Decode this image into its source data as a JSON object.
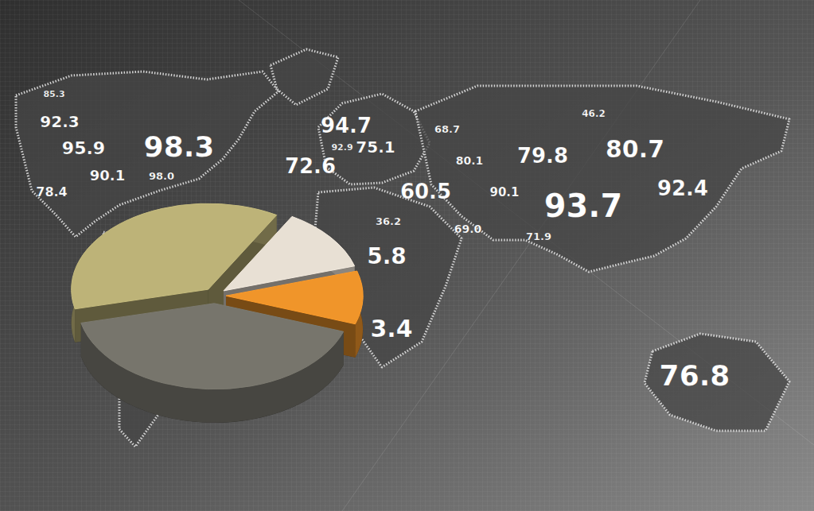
{
  "chart_data": {
    "type": "pie",
    "values": [
      12,
      10,
      41,
      37
    ],
    "colors": [
      "#e8e0d4",
      "#f0952a",
      "#77756c",
      "#bdb378"
    ],
    "annotations": [
      "85.3",
      "92.3",
      "95.9",
      "98.3",
      "90.1",
      "98.0",
      "78.4",
      "94.7",
      "68.7",
      "92.9",
      "75.1",
      "46.2",
      "79.8",
      "80.7",
      "72.6",
      "80.1",
      "60.5",
      "90.1",
      "93.7",
      "92.4",
      "36.2",
      "69.0",
      "71.9",
      "5.8",
      "3.4",
      "76.8"
    ]
  }
}
